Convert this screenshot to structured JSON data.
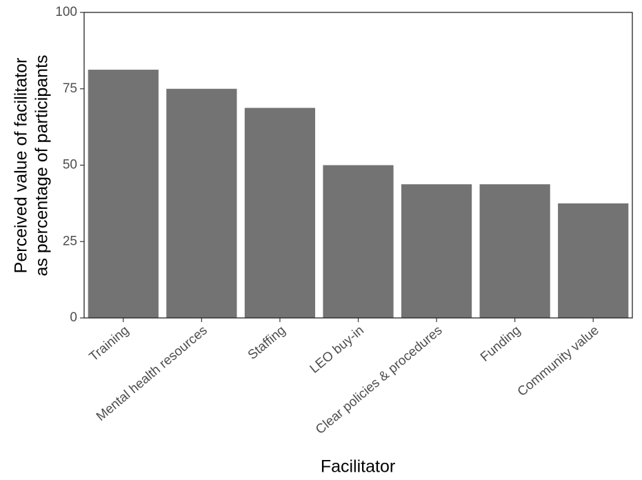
{
  "chart_data": {
    "type": "bar",
    "x_label": "Facilitator",
    "y_label": [
      "Perceived value of facilitator",
      "as percentage of participants"
    ],
    "categories": [
      "Training",
      "Mental health resources",
      "Staffing",
      "LEO buy-in",
      "Clear policies & procedures",
      "Funding",
      "Community value"
    ],
    "values": [
      81.25,
      75,
      68.75,
      50,
      43.75,
      43.75,
      37.5
    ],
    "color": "#737373",
    "ylim": [
      0,
      100
    ],
    "yticks": [
      0,
      25,
      50,
      75,
      100
    ],
    "grid": false
  }
}
